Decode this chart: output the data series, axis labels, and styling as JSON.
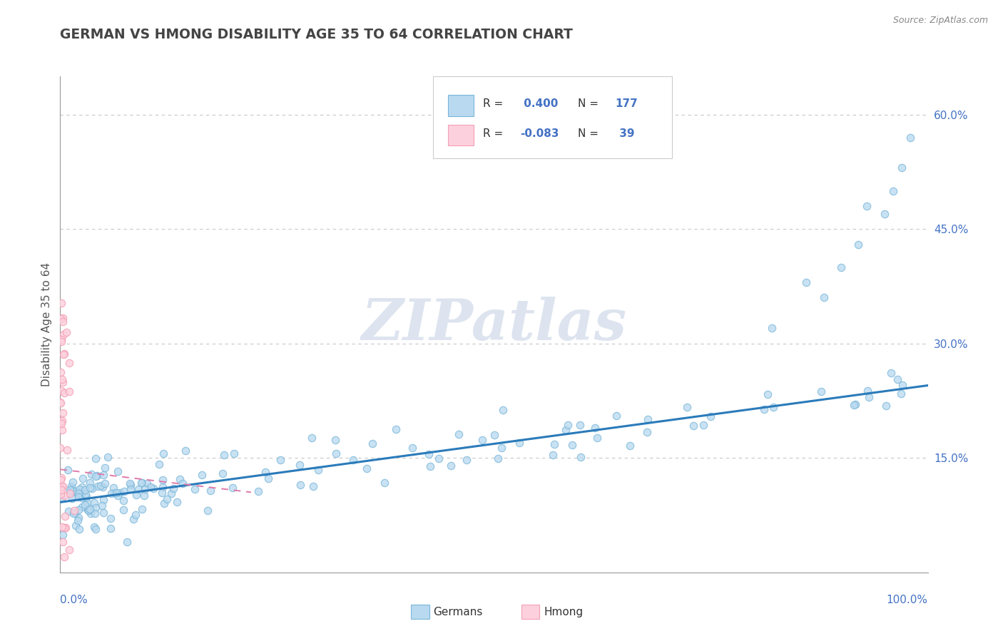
{
  "title": "GERMAN VS HMONG DISABILITY AGE 35 TO 64 CORRELATION CHART",
  "source": "Source: ZipAtlas.com",
  "ylabel": "Disability Age 35 to 64",
  "xlim": [
    0.0,
    1.0
  ],
  "ylim": [
    0.0,
    0.65
  ],
  "yticks": [
    0.15,
    0.3,
    0.45,
    0.6
  ],
  "ytick_labels": [
    "15.0%",
    "30.0%",
    "45.0%",
    "60.0%"
  ],
  "watermark": "ZIPatlas",
  "blue_color": "#7ab6d9",
  "pink_color": "#f4a0b5",
  "blue_line_color": "#2b7bba",
  "pink_line_color": "#e07aaa",
  "blue_fill_color": "#b8d9ef",
  "pink_fill_color": "#fdd0dd",
  "background_color": "#ffffff",
  "grid_color": "#c8c8c8",
  "title_color": "#444444",
  "axis_label_color": "#4472c4",
  "watermark_color": "#dde4ef",
  "german_trend_x0": 0.0,
  "german_trend_y0": 0.092,
  "german_trend_x1": 1.0,
  "german_trend_y1": 0.245,
  "hmong_trend_x0": 0.0,
  "hmong_trend_y0": 0.135,
  "hmong_trend_x1": 0.22,
  "hmong_trend_y1": 0.105
}
